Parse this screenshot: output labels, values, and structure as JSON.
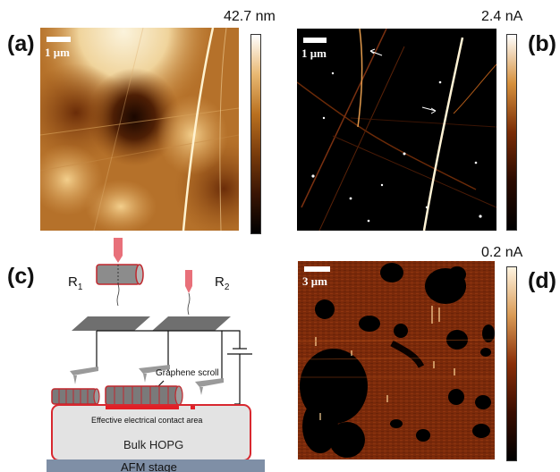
{
  "panels": {
    "a": {
      "label": "(a)",
      "scale_bar": "1 μm",
      "colorbar_max": "42.7 nm",
      "colormap": [
        "#000000",
        "#3a1504",
        "#7a3c0c",
        "#b9701f",
        "#e8b872",
        "#ffffff"
      ]
    },
    "b": {
      "label": "(b)",
      "scale_bar": "1 μm",
      "colorbar_max": "2.4 nA",
      "colormap": [
        "#000000",
        "#2a0a00",
        "#7a2c06",
        "#d6903c",
        "#ffffff"
      ]
    },
    "c": {
      "label": "(c)",
      "r1": "R",
      "r1_sub": "1",
      "r2": "R",
      "r2_sub": "2",
      "graphene_scroll": "Graphene scroll",
      "contact_area": "Effective electrical contact area",
      "bulk": "Bulk HOPG",
      "stage": "AFM stage"
    },
    "d": {
      "label": "(d)",
      "scale_bar": "3 μm",
      "colorbar_max": "0.2 nA",
      "colormap": [
        "#000000",
        "#3a0d00",
        "#8a2e08",
        "#d99a55",
        "#fff4e0"
      ]
    }
  }
}
